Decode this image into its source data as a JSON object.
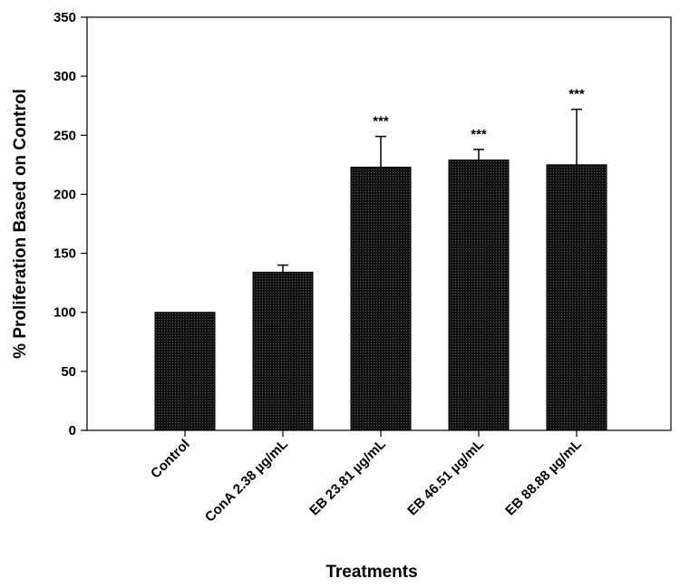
{
  "chart_data": {
    "type": "bar",
    "categories": [
      "Control",
      "ConA 2.38 µg/mL",
      "EB 23.81 µg/mL",
      "EB 46.51 µg/mL",
      "EB 88.88 µg/mL"
    ],
    "values": [
      100,
      134,
      223,
      229,
      225
    ],
    "error_upper": [
      0,
      6,
      26,
      9,
      47
    ],
    "significance": [
      "",
      "",
      "***",
      "***",
      "***"
    ],
    "xlabel": "Treatments",
    "ylabel": "% Proliferation Based on Control",
    "ylim": [
      0,
      350
    ],
    "yticks": [
      0,
      50,
      100,
      150,
      200,
      250,
      300,
      350
    ],
    "grid": false,
    "bar_color": "#1c1c1c"
  }
}
